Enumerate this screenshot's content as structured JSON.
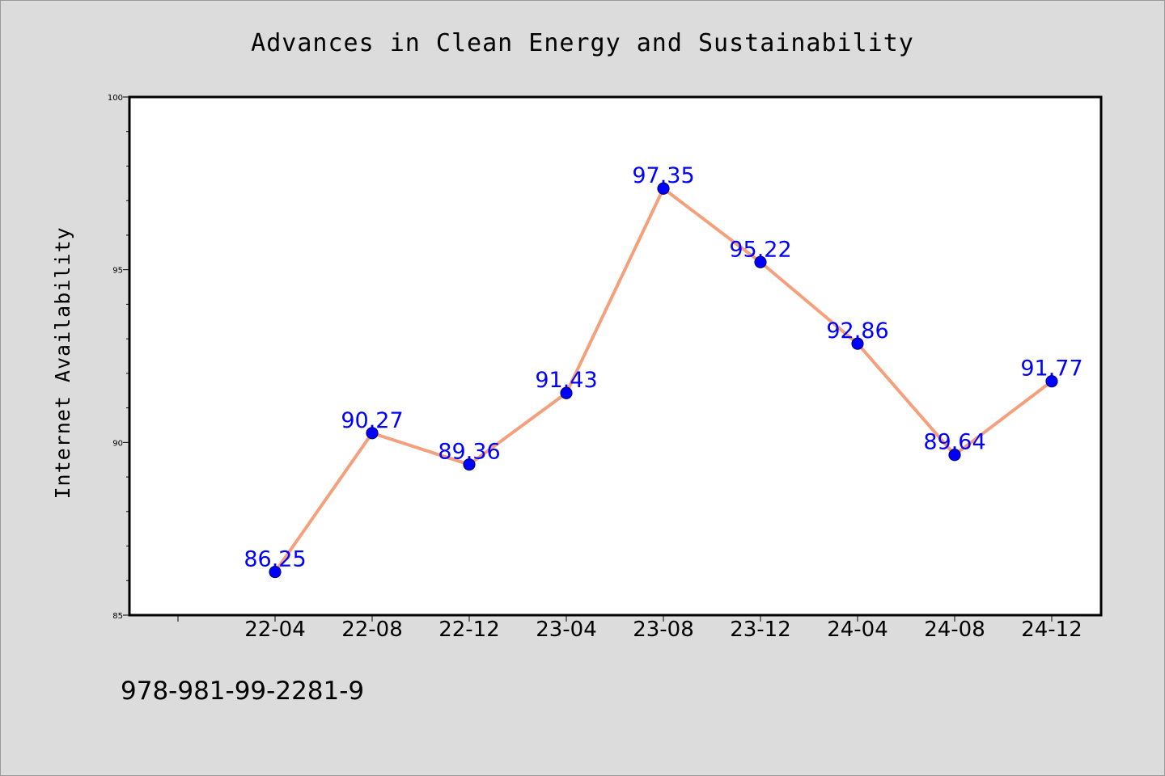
{
  "colors": {
    "figure_background": "#dcdcdc",
    "figure_border": "#999999",
    "plot_background": "#ffffff",
    "plot_border": "#000000",
    "line": "#f4a07c",
    "marker_fill": "#0000ff",
    "marker_edge": "#000080",
    "data_label": "#0000ff",
    "text": "#000000"
  },
  "footer_text": "978-981-99-2281-9",
  "chart_data": {
    "type": "line",
    "title": "Advances in Clean Energy and Sustainability",
    "xlabel": "",
    "ylabel": "Internet Availability",
    "categories": [
      "22-04",
      "22-08",
      "22-12",
      "23-04",
      "23-08",
      "23-12",
      "24-04",
      "24-08",
      "24-12"
    ],
    "series": [
      {
        "values": [
          86.25,
          90.27,
          89.36,
          91.43,
          97.35,
          95.22,
          92.86,
          89.64,
          91.77
        ],
        "data_labels": [
          "86.25",
          "90.27",
          "89.36",
          "91.43",
          "97.35",
          "95.22",
          "92.86",
          "89.64",
          "91.77"
        ],
        "line_color": "#f4a07c",
        "marker": "circle",
        "marker_color": "#0000ff"
      }
    ],
    "ylim": [
      85,
      100
    ],
    "yticks": [
      85,
      90,
      95,
      100
    ],
    "ytick_labels": [
      "85",
      "90",
      "95",
      "100"
    ],
    "x_leading_empty_slots": 1,
    "grid": false,
    "legend": "none"
  }
}
